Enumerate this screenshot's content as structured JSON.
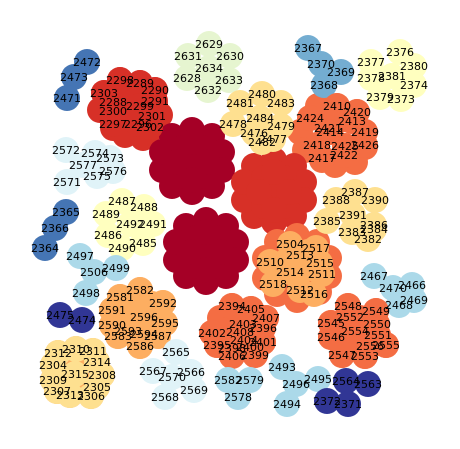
{
  "palette": {
    "dark_red": "#a50026",
    "red": "#d73027",
    "orange": "#f46d43",
    "light_orange": "#fdae61",
    "pale_yellow": "#fee090",
    "cream": "#ffffbf",
    "pale_green": "#e6f5d0",
    "pale_blue": "#e0f3f8",
    "light_blue": "#abd9e9",
    "mid_blue": "#74add1",
    "blue": "#4575b4",
    "dark_blue": "#313695"
  },
  "clusters": [
    {
      "id": "c-top-green",
      "color": "pale_green",
      "nodes": [
        "2629",
        "2631",
        "2630",
        "2634",
        "2628",
        "2633",
        "2632"
      ]
    },
    {
      "id": "c-top-blue",
      "color": "mid_blue",
      "nodes": [
        "2367",
        "2370",
        "2369",
        "2368"
      ]
    },
    {
      "id": "c-top-right-cream",
      "color": "cream",
      "nodes": [
        "2376",
        "2377",
        "2380",
        "2378",
        "2381",
        "2374",
        "2379",
        "2373"
      ]
    },
    {
      "id": "c-left-blue-top",
      "color": "blue",
      "nodes": [
        "2472",
        "2473",
        "2471"
      ]
    },
    {
      "id": "c-red-upper-left",
      "color": "red",
      "nodes": [
        "2298",
        "2289",
        "2303",
        "2290",
        "2288",
        "2299",
        "2291",
        "2300",
        "2297",
        "2301",
        "2296",
        "2302"
      ]
    },
    {
      "id": "c-yellow-mid",
      "color": "pale_yellow",
      "nodes": [
        "2480",
        "2481",
        "2483",
        "2484",
        "2478",
        "2479",
        "2476",
        "2477",
        "2482"
      ]
    },
    {
      "id": "c-red-upper-right",
      "color": "orange",
      "nodes": [
        "2410",
        "2420",
        "2413",
        "2419",
        "2426",
        "2424",
        "2421",
        "2418",
        "2425",
        "2422",
        "2417",
        "2414"
      ]
    },
    {
      "id": "c-dark-red-center",
      "color": "dark_red",
      "nodes": []
    },
    {
      "id": "c-pale-blue-left",
      "color": "pale_blue",
      "nodes": [
        "2572",
        "2574",
        "2573",
        "2577",
        "2576",
        "2571",
        "2575"
      ]
    },
    {
      "id": "c-red-center-right",
      "color": "red",
      "nodes": []
    },
    {
      "id": "c-cream-right",
      "color": "pale_yellow",
      "nodes": [
        "2387",
        "2388",
        "2390",
        "2391",
        "2385",
        "2386",
        "2384",
        "2383",
        "2382"
      ]
    },
    {
      "id": "c-cream-left",
      "color": "cream",
      "nodes": [
        "2487",
        "2488",
        "2489",
        "2492",
        "2491",
        "2486",
        "2485",
        "2490"
      ]
    },
    {
      "id": "c-blue-left-mid",
      "color": "blue",
      "nodes": [
        "2365",
        "2366",
        "2364"
      ]
    },
    {
      "id": "c-light-blue-mid",
      "color": "light_blue",
      "nodes": [
        "2497",
        "2506",
        "2499",
        "2498"
      ]
    },
    {
      "id": "c-dark-red-mid",
      "color": "dark_red",
      "nodes": []
    },
    {
      "id": "c-orange-center",
      "color": "light_orange",
      "nodes": [
        "2504",
        "2517",
        "2513",
        "2515",
        "2510",
        "2514",
        "2511",
        "2518",
        "2512",
        "2516"
      ]
    },
    {
      "id": "c-light-blue-right",
      "color": "light_blue",
      "nodes": [
        "2467",
        "2466",
        "2470",
        "2468",
        "2469"
      ]
    },
    {
      "id": "c-orange-left-low",
      "color": "light_orange",
      "nodes": [
        "2582",
        "2581",
        "2592",
        "2591",
        "2596",
        "2595",
        "2590",
        "2594",
        "2587",
        "2583",
        "2586",
        "2593"
      ]
    },
    {
      "id": "c-orange-center-low",
      "color": "orange",
      "nodes": [
        "2394",
        "2405",
        "2407",
        "2396",
        "2402",
        "2408",
        "2401",
        "2398",
        "2395",
        "2400",
        "2403",
        "2399",
        "2406",
        "2404"
      ]
    },
    {
      "id": "c-orange-right-low",
      "color": "orange",
      "nodes": [
        "2548",
        "2549",
        "2545",
        "2552",
        "2550",
        "2554",
        "2551",
        "2546",
        "2555",
        "2556",
        "2553",
        "2547"
      ]
    },
    {
      "id": "c-dark-blue-left",
      "color": "dark_blue",
      "nodes": [
        "2475",
        "2474"
      ]
    },
    {
      "id": "c-pale-blue-low",
      "color": "pale_blue",
      "nodes": [
        "2565",
        "2567",
        "2566",
        "2570",
        "2568",
        "2569"
      ]
    },
    {
      "id": "c-light-blue-low",
      "color": "light_blue",
      "nodes": [
        "2582b",
        "2579",
        "2578"
      ]
    },
    {
      "id": "c-mid-blue-low",
      "color": "light_blue",
      "nodes": [
        "2493",
        "2496",
        "2495",
        "2494"
      ]
    },
    {
      "id": "c-dark-blue-low",
      "color": "dark_blue",
      "nodes": [
        "2564",
        "2563",
        "2372",
        "2371"
      ]
    },
    {
      "id": "c-light-orange-bottom",
      "color": "pale_yellow",
      "nodes": [
        "2310",
        "2312",
        "2311",
        "2304",
        "2314",
        "2309",
        "2315",
        "2308",
        "2307",
        "2305",
        "2313",
        "2306"
      ]
    }
  ],
  "labels": {
    "2629": "2629",
    "2631": "2631",
    "2630": "2630",
    "2634": "2634",
    "2628": "2628",
    "2633": "2633",
    "2632": "2632",
    "2367": "2367",
    "2370": "2370",
    "2369": "2369",
    "2368": "2368",
    "2376": "2376",
    "2377": "2377",
    "2380": "2380",
    "2378": "2378",
    "2381": "2381",
    "2374": "2374",
    "2379": "2379",
    "2373": "2373",
    "2472": "2472",
    "2473": "2473",
    "2471": "2471",
    "2480": "2480",
    "2481": "2481",
    "2483": "2483",
    "2484": "2484",
    "2478": "2478",
    "2479": "2479",
    "2476": "2476",
    "2477": "2477",
    "2482": "2482",
    "2572": "2572",
    "2574": "2574",
    "2573": "2573",
    "2577": "2577",
    "2576": "2576",
    "2571": "2571",
    "2575": "2575",
    "2387": "2387",
    "2388": "2388",
    "2390": "2390",
    "2391": "2391",
    "2385": "2385",
    "2386": "2386",
    "2384": "2384",
    "2383": "2383",
    "2382": "2382",
    "2487": "2487",
    "2488": "2488",
    "2489": "2489",
    "2492": "2492",
    "2491": "2491",
    "2486": "2486",
    "2485": "2485",
    "2490": "2490",
    "2365": "2365",
    "2366": "2366",
    "2364": "2364",
    "2497": "2497",
    "2506": "2506",
    "2499": "2499",
    "2498": "2498",
    "2467": "2467",
    "2466": "2466",
    "2470": "2470",
    "2468": "2468",
    "2469": "2469",
    "2475": "2475",
    "2474": "2474",
    "2565": "2565",
    "2567": "2567",
    "2566": "2566",
    "2570": "2570",
    "2568": "2568",
    "2569": "2569",
    "2582b": "2582",
    "2579": "2579",
    "2578": "2578",
    "2493": "2493",
    "2496": "2496",
    "2495": "2495",
    "2494": "2494",
    "2564": "2564",
    "2563": "2563",
    "2372": "2372",
    "2371": "2371",
    "2310": "2310",
    "2312": "2312",
    "2311": "2311",
    "2304": "2304",
    "2314": "2314",
    "2309": "2309",
    "2315": "2315",
    "2308": "2308",
    "2307": "2307",
    "2305": "2305",
    "2313": "2313",
    "2306": "2306",
    "2582": "2582",
    "2581": "2581",
    "2592": "2592",
    "2591": "2591",
    "2596": "2596",
    "2595": "2595",
    "2590": "2590",
    "2594": "2594",
    "2587": "2587",
    "2583": "2583",
    "2586": "2586",
    "2593": "2593",
    "2394": "2394",
    "2405": "2405",
    "2407": "2407",
    "2396": "2396",
    "2402": "2402",
    "2408": "2408",
    "2401": "2401",
    "2398": "2398",
    "2395": "2395",
    "2400": "2400",
    "2403": "2403",
    "2399": "2399",
    "2406": "2406",
    "2404": "2404",
    "2548": "2548",
    "2549": "2549",
    "2545": "2545",
    "2552": "2552",
    "2550": "2550",
    "2554": "2554",
    "2551": "2551",
    "2546": "2546",
    "2555": "2555",
    "2556": "2556",
    "2553": "2553",
    "2547": "2547",
    "2298": "2298",
    "2289": "2289",
    "2303": "2303",
    "2290": "2290",
    "2288": "2288",
    "2299": "2299",
    "2291": "2291",
    "2300": "2300",
    "2297": "2297",
    "2301": "2301",
    "2296": "2296",
    "2302": "2302",
    "2410": "2410",
    "2420": "2420",
    "2413": "2413",
    "2419": "2419",
    "2426": "2426",
    "2424": "2424",
    "2421": "2421",
    "2418": "2418",
    "2425": "2425",
    "2422": "2422",
    "2417": "2417",
    "2414": "2414",
    "2504": "2504",
    "2517": "2517",
    "2513": "2513",
    "2515": "2515",
    "2510": "2510",
    "2514": "2514",
    "2511": "2511",
    "2518": "2518",
    "2512": "2512",
    "2516": "2516"
  }
}
